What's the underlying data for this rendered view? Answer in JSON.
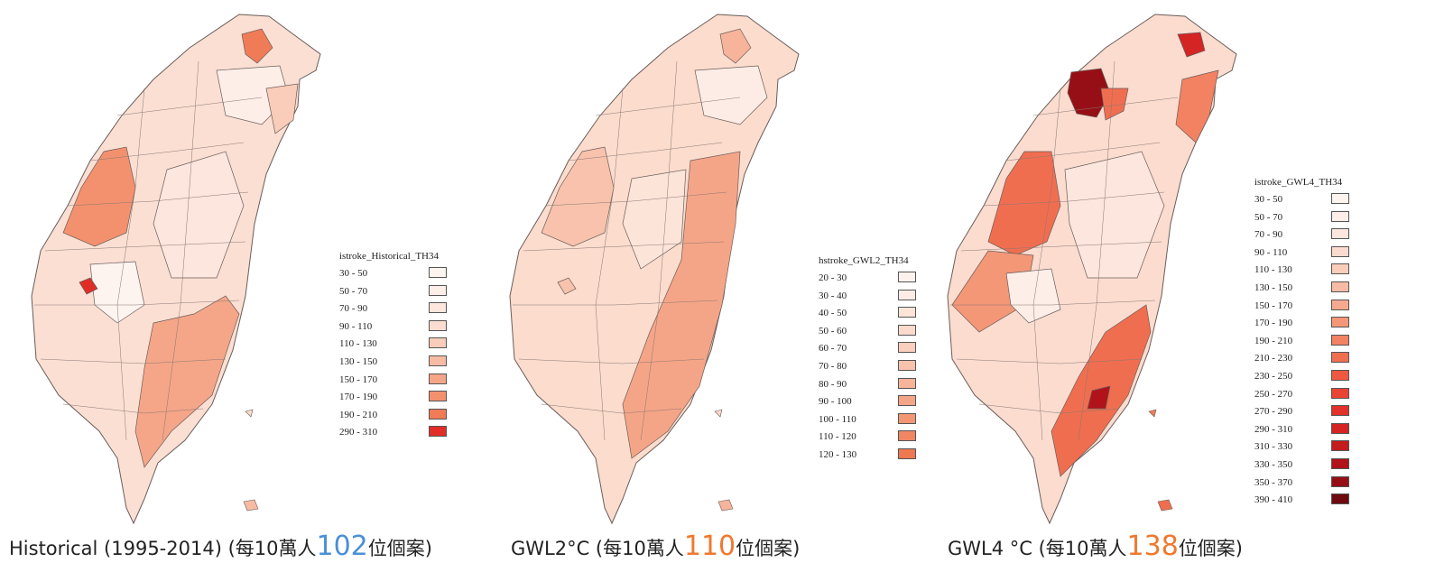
{
  "maps": [
    {
      "id": "historical",
      "legend": {
        "title": "istroke_Historical_TH34",
        "items": [
          {
            "label": "30 - 50",
            "color": "#fdf3ef"
          },
          {
            "label": "50 - 70",
            "color": "#fdeee8"
          },
          {
            "label": "70 - 90",
            "color": "#fce6dd"
          },
          {
            "label": "90 - 110",
            "color": "#fbdccf"
          },
          {
            "label": "110 - 130",
            "color": "#f9cdb9"
          },
          {
            "label": "130 - 150",
            "color": "#f7bba3"
          },
          {
            "label": "150 - 170",
            "color": "#f5a688"
          },
          {
            "label": "170 - 190",
            "color": "#f3916e"
          },
          {
            "label": "190 - 210",
            "color": "#f07c57"
          },
          {
            "label": "290 - 310",
            "color": "#e02d27"
          }
        ]
      },
      "caption": {
        "prefix": "Historical (1995-2014) (每10萬人",
        "value": "102",
        "suffix": "位個案)",
        "value_color": "#4a90d6"
      }
    },
    {
      "id": "gwl2",
      "legend": {
        "title": "hstroke_GWL2_TH34",
        "items": [
          {
            "label": "20 - 30",
            "color": "#fdf2ed"
          },
          {
            "label": "30 - 40",
            "color": "#fdece5"
          },
          {
            "label": "40 - 50",
            "color": "#fce4d9"
          },
          {
            "label": "50 - 60",
            "color": "#fbdacc"
          },
          {
            "label": "60 - 70",
            "color": "#facfbd"
          },
          {
            "label": "70 - 80",
            "color": "#f8c2ac"
          },
          {
            "label": "80 - 90",
            "color": "#f7b49a"
          },
          {
            "label": "90 - 100",
            "color": "#f5a587"
          },
          {
            "label": "100 - 110",
            "color": "#f39673"
          },
          {
            "label": "110 - 120",
            "color": "#f18662"
          },
          {
            "label": "120 - 130",
            "color": "#ef7752"
          }
        ]
      },
      "caption": {
        "prefix": "GWL2°C (每10萬人",
        "value": "110",
        "suffix": "位個案)",
        "value_color": "#f0782e"
      }
    },
    {
      "id": "gwl4",
      "legend": {
        "title": "istroke_GWL4_TH34",
        "items": [
          {
            "label": "30 - 50",
            "color": "#fdf4f0"
          },
          {
            "label": "50 - 70",
            "color": "#fdeee8"
          },
          {
            "label": "70 - 90",
            "color": "#fce6dd"
          },
          {
            "label": "90 - 110",
            "color": "#fbdbcd"
          },
          {
            "label": "110 - 130",
            "color": "#f9cdb9"
          },
          {
            "label": "130 - 150",
            "color": "#f8bca4"
          },
          {
            "label": "150 - 170",
            "color": "#f6aa8d"
          },
          {
            "label": "170 - 190",
            "color": "#f49777"
          },
          {
            "label": "190 - 210",
            "color": "#f28262"
          },
          {
            "label": "210 - 230",
            "color": "#f06e50"
          },
          {
            "label": "230 - 250",
            "color": "#ee5a41"
          },
          {
            "label": "250 - 270",
            "color": "#ea4434"
          },
          {
            "label": "270 - 290",
            "color": "#e2302a"
          },
          {
            "label": "290 - 310",
            "color": "#d42424"
          },
          {
            "label": "310 - 330",
            "color": "#c41b1e"
          },
          {
            "label": "330 - 350",
            "color": "#b0141a"
          },
          {
            "label": "350 - 370",
            "color": "#960f16"
          },
          {
            "label": "390 - 410",
            "color": "#6e0a10"
          }
        ]
      },
      "caption": {
        "prefix": "GWL4 °C (每10萬人",
        "value": "138",
        "suffix": "位個案)",
        "value_color": "#f0782e"
      }
    }
  ]
}
